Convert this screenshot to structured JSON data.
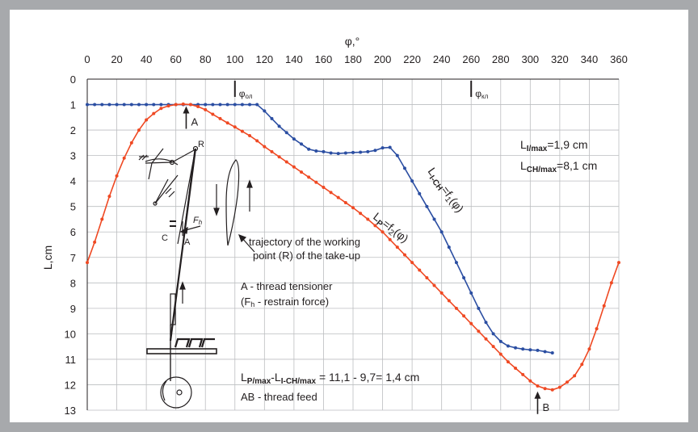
{
  "chart_data": {
    "type": "line",
    "xlabel": "φ,°",
    "ylabel": "L,cm",
    "xlim": [
      0,
      360
    ],
    "ylim": [
      0,
      13
    ],
    "y_inverted": true,
    "x_ticks": [
      0,
      20,
      40,
      60,
      80,
      100,
      120,
      140,
      160,
      180,
      200,
      220,
      240,
      260,
      280,
      300,
      320,
      340,
      360
    ],
    "y_ticks": [
      0,
      1,
      2,
      3,
      4,
      5,
      6,
      7,
      8,
      9,
      10,
      11,
      12,
      13
    ],
    "grid": true,
    "colors": {
      "lich": "#2b4ea2",
      "lp": "#ef4923",
      "grid": "#bcbec0"
    },
    "series": [
      {
        "name": "LI-CH=f1(φ)",
        "label_main": "L",
        "label_sub": "I-CH",
        "label_rest": "=f",
        "label_idx": "1",
        "label_arg": "(φ)",
        "x": [
          0,
          5,
          10,
          15,
          20,
          25,
          30,
          35,
          40,
          45,
          50,
          55,
          60,
          65,
          70,
          75,
          80,
          85,
          90,
          95,
          100,
          105,
          110,
          115,
          120,
          125,
          130,
          135,
          140,
          145,
          150,
          155,
          160,
          165,
          170,
          175,
          180,
          185,
          190,
          195,
          200,
          205,
          210,
          215,
          220,
          225,
          230,
          235,
          240,
          245,
          250,
          255,
          260,
          265,
          270,
          275,
          280,
          285,
          290,
          295,
          300,
          305,
          310,
          315
        ],
        "values": [
          1.0,
          1.0,
          1.0,
          1.0,
          1.0,
          1.0,
          1.0,
          1.0,
          1.0,
          1.0,
          1.0,
          1.0,
          1.0,
          1.0,
          1.0,
          1.0,
          1.0,
          1.0,
          1.0,
          1.0,
          1.0,
          1.0,
          1.0,
          1.0,
          1.25,
          1.55,
          1.85,
          2.1,
          2.35,
          2.55,
          2.75,
          2.82,
          2.85,
          2.9,
          2.92,
          2.9,
          2.88,
          2.87,
          2.85,
          2.8,
          2.7,
          2.68,
          3.0,
          3.5,
          4.0,
          4.5,
          5.0,
          5.5,
          6.0,
          6.6,
          7.2,
          7.8,
          8.4,
          9.0,
          9.55,
          10.0,
          10.3,
          10.48,
          10.55,
          10.6,
          10.63,
          10.65,
          10.7,
          10.75
        ]
      },
      {
        "name": "LP=f2(φ)",
        "label_main": "L",
        "label_sub": "P",
        "label_rest": "=f",
        "label_idx": "2",
        "label_arg": "(φ)",
        "x": [
          0,
          5,
          10,
          15,
          20,
          25,
          30,
          35,
          40,
          45,
          50,
          55,
          60,
          65,
          70,
          75,
          80,
          85,
          90,
          95,
          100,
          105,
          110,
          115,
          120,
          125,
          130,
          135,
          140,
          145,
          150,
          155,
          160,
          165,
          170,
          175,
          180,
          185,
          190,
          195,
          200,
          205,
          210,
          215,
          220,
          225,
          230,
          235,
          240,
          245,
          250,
          255,
          260,
          265,
          270,
          275,
          280,
          285,
          290,
          295,
          300,
          305,
          310,
          315,
          320,
          325,
          330,
          335,
          340,
          345,
          350,
          355,
          360
        ],
        "values": [
          7.2,
          6.4,
          5.5,
          4.6,
          3.8,
          3.1,
          2.5,
          2.0,
          1.6,
          1.35,
          1.15,
          1.05,
          1.0,
          0.98,
          1.0,
          1.08,
          1.2,
          1.38,
          1.55,
          1.72,
          1.88,
          2.05,
          2.22,
          2.42,
          2.65,
          2.85,
          3.05,
          3.25,
          3.45,
          3.65,
          3.85,
          4.05,
          4.25,
          4.45,
          4.65,
          4.85,
          5.05,
          5.27,
          5.5,
          5.75,
          6.0,
          6.3,
          6.6,
          6.9,
          7.2,
          7.5,
          7.8,
          8.1,
          8.4,
          8.7,
          9.0,
          9.3,
          9.6,
          9.9,
          10.2,
          10.5,
          10.8,
          11.1,
          11.35,
          11.6,
          11.85,
          12.05,
          12.15,
          12.2,
          12.1,
          11.9,
          11.65,
          11.2,
          10.6,
          9.8,
          8.9,
          8.0,
          7.2
        ]
      }
    ],
    "vertical_markers": [
      {
        "x": 100,
        "label": "φ",
        "sub": "ол"
      },
      {
        "x": 260,
        "label": "φ",
        "sub": "кл"
      }
    ],
    "point_markers": [
      {
        "x": 67,
        "y": 1.0,
        "label": "A"
      },
      {
        "x": 305,
        "y": 12.2,
        "label": "B"
      }
    ],
    "annotations": {
      "li_max_main": "L",
      "li_max_sub": "I/max",
      "li_max_rest": "=1,9 cm",
      "lch_max_main": "L",
      "lch_max_sub": "CH/max",
      "lch_max_rest": "=8,1 cm",
      "trajectory_line1": "trajectory of the working",
      "trajectory_line2": "point (R) of the take-up",
      "tensioner_line1": "A - thread tensioner",
      "tensioner_line2_open": "(F",
      "tensioner_line2_sub": "h",
      "tensioner_line2_rest": " - restrain force)",
      "formula_a": "L",
      "formula_a_sub": "P/max",
      "formula_b": "-L",
      "formula_b_sub": "I-CH/max",
      "formula_rest": " = 11,1 - 9,7= 1,4 cm",
      "thread_feed": "AB - thread feed"
    },
    "sketch_labels": {
      "R": "R",
      "C": "C",
      "A": "A",
      "F": "F",
      "h": "h"
    }
  }
}
